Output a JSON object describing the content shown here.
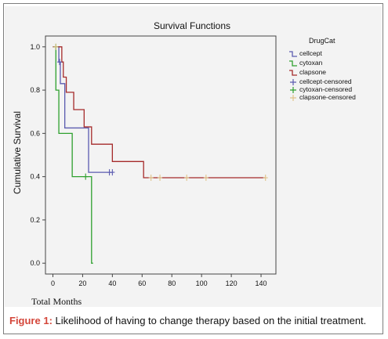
{
  "chart_data": {
    "type": "line",
    "title": "Survival Functions",
    "xlabel": "Total Months",
    "ylabel": "Cumulative Survival",
    "xlim": [
      -5,
      150
    ],
    "ylim": [
      -0.05,
      1.05
    ],
    "x_ticks": [
      0,
      20,
      40,
      60,
      80,
      100,
      120,
      140
    ],
    "y_ticks": [
      0.0,
      0.2,
      0.4,
      0.6,
      0.8,
      1.0
    ],
    "y_tick_labels": [
      "0.0",
      "0.2",
      "0.4",
      "0.6",
      "0.8",
      "1.0"
    ],
    "legend_title": "DrugCat",
    "legend_position": "right",
    "grid": false,
    "series": [
      {
        "name": "cellcept",
        "color": "#5b5bb0",
        "steps": [
          [
            0,
            1.0
          ],
          [
            4,
            0.93
          ],
          [
            5,
            0.83
          ],
          [
            8,
            0.625
          ],
          [
            24,
            0.42
          ],
          [
            40,
            0.42
          ]
        ]
      },
      {
        "name": "cytoxan",
        "color": "#2ea02e",
        "steps": [
          [
            0,
            1.0
          ],
          [
            2,
            0.8
          ],
          [
            4,
            0.6
          ],
          [
            13,
            0.4
          ],
          [
            26,
            0.0
          ]
        ],
        "end_x": 27
      },
      {
        "name": "clapsone",
        "color": "#a52a2a",
        "steps": [
          [
            0,
            1.0
          ],
          [
            6,
            0.93
          ],
          [
            7,
            0.86
          ],
          [
            9,
            0.79
          ],
          [
            14,
            0.71
          ],
          [
            21,
            0.63
          ],
          [
            26,
            0.55
          ],
          [
            40,
            0.47
          ],
          [
            61,
            0.395
          ],
          [
            143,
            0.395
          ]
        ]
      }
    ],
    "censored": [
      {
        "name": "cellcept-censored",
        "color": "#5b5bb0",
        "points": [
          [
            4.5,
            0.93
          ],
          [
            38,
            0.42
          ],
          [
            40,
            0.42
          ]
        ]
      },
      {
        "name": "cytoxan-censored",
        "color": "#2ea02e",
        "points": [
          [
            2,
            1.0
          ],
          [
            22,
            0.4
          ]
        ]
      },
      {
        "name": "clapsone-censored",
        "color": "#e0c38a",
        "points": [
          [
            2,
            1.0
          ],
          [
            66,
            0.395
          ],
          [
            72,
            0.395
          ],
          [
            90,
            0.395
          ],
          [
            103,
            0.395
          ],
          [
            143,
            0.395
          ]
        ]
      }
    ]
  },
  "caption": {
    "label": "Figure 1:",
    "text": " Likelihood of having to change therapy based on the initial treatment."
  }
}
